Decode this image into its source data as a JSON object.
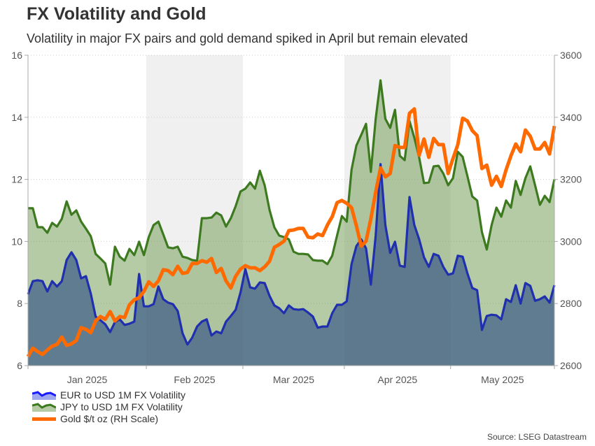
{
  "title": "FX Volatility and Gold",
  "subtitle": "Volatility in major FX pairs and gold demand spiked in April but remain elevated",
  "source": "Source: LSEG Datastream",
  "chart_data": {
    "type": "area+line",
    "title": "FX Volatility and Gold",
    "subtitle": "Volatility in major FX pairs and gold demand spiked in April but remain elevated",
    "left_axis": {
      "ylim": [
        6,
        16
      ],
      "ticks": [
        "6",
        "8",
        "10",
        "12",
        "14",
        "16"
      ]
    },
    "right_axis": {
      "ylim": [
        2600,
        3600
      ],
      "ticks": [
        "2600",
        "2800",
        "3000",
        "3200",
        "3400",
        "3600"
      ]
    },
    "x_tick_labels": [
      "Jan 2025",
      "Feb 2025",
      "Mar 2025",
      "Apr 2025",
      "May 2025"
    ],
    "shaded_months": [
      "Feb 2025",
      "Apr 2025"
    ],
    "grid": "horizontal dotted",
    "legend_position": "bottom-left",
    "x": [
      "2024-12-30",
      "2024-12-31",
      "2025-01-01",
      "2025-01-02",
      "2025-01-03",
      "2025-01-06",
      "2025-01-07",
      "2025-01-08",
      "2025-01-09",
      "2025-01-10",
      "2025-01-13",
      "2025-01-14",
      "2025-01-15",
      "2025-01-16",
      "2025-01-17",
      "2025-01-20",
      "2025-01-21",
      "2025-01-22",
      "2025-01-23",
      "2025-01-24",
      "2025-01-27",
      "2025-01-28",
      "2025-01-29",
      "2025-01-30",
      "2025-01-31",
      "2025-02-03",
      "2025-02-04",
      "2025-02-05",
      "2025-02-06",
      "2025-02-07",
      "2025-02-10",
      "2025-02-11",
      "2025-02-12",
      "2025-02-13",
      "2025-02-14",
      "2025-02-17",
      "2025-02-18",
      "2025-02-19",
      "2025-02-20",
      "2025-02-21",
      "2025-02-24",
      "2025-02-25",
      "2025-02-26",
      "2025-02-27",
      "2025-02-28",
      "2025-03-03",
      "2025-03-04",
      "2025-03-05",
      "2025-03-06",
      "2025-03-07",
      "2025-03-10",
      "2025-03-11",
      "2025-03-12",
      "2025-03-13",
      "2025-03-14",
      "2025-03-17",
      "2025-03-18",
      "2025-03-19",
      "2025-03-20",
      "2025-03-21",
      "2025-03-24",
      "2025-03-25",
      "2025-03-26",
      "2025-03-27",
      "2025-03-28",
      "2025-03-31",
      "2025-04-01",
      "2025-04-02",
      "2025-04-03",
      "2025-04-04",
      "2025-04-07",
      "2025-04-08",
      "2025-04-09",
      "2025-04-10",
      "2025-04-11",
      "2025-04-14",
      "2025-04-15",
      "2025-04-16",
      "2025-04-17",
      "2025-04-18",
      "2025-04-21",
      "2025-04-22",
      "2025-04-23",
      "2025-04-24",
      "2025-04-25",
      "2025-04-28",
      "2025-04-29",
      "2025-04-30",
      "2025-05-01",
      "2025-05-02",
      "2025-05-05",
      "2025-05-06",
      "2025-05-07",
      "2025-05-08",
      "2025-05-09",
      "2025-05-12",
      "2025-05-13",
      "2025-05-14",
      "2025-05-15",
      "2025-05-16",
      "2025-05-19",
      "2025-05-20",
      "2025-05-21",
      "2025-05-22",
      "2025-05-23",
      "2025-05-26",
      "2025-05-27",
      "2025-05-28",
      "2025-05-29",
      "2025-05-30"
    ],
    "series": [
      {
        "name": "JPY to USD 1M FX Volatility",
        "axis": "left",
        "style": "area",
        "line_color": "#3d7a1f",
        "fill_color": "#b4cba6",
        "values": [
          11.07,
          11.07,
          10.46,
          10.46,
          10.28,
          10.6,
          10.48,
          10.73,
          11.29,
          10.86,
          11.0,
          10.64,
          10.41,
          10.17,
          9.6,
          9.45,
          9.29,
          8.61,
          9.83,
          9.51,
          9.38,
          9.76,
          9.56,
          9.99,
          9.56,
          10.14,
          10.53,
          10.64,
          10.23,
          9.81,
          9.78,
          9.83,
          9.51,
          9.47,
          9.4,
          9.38,
          10.75,
          10.75,
          10.77,
          10.93,
          10.84,
          10.48,
          10.75,
          11.14,
          11.61,
          11.7,
          11.9,
          11.7,
          12.28,
          11.81,
          11.02,
          10.46,
          10.19,
          10.14,
          10.07,
          9.67,
          9.6,
          9.6,
          9.58,
          9.4,
          9.38,
          9.38,
          9.27,
          9.54,
          10.19,
          10.82,
          10.64,
          12.31,
          13.09,
          13.43,
          13.79,
          12.24,
          13.95,
          15.19,
          13.95,
          13.66,
          14.24,
          12.76,
          12.62,
          13.88,
          13.34,
          12.71,
          11.88,
          11.9,
          12.42,
          12.44,
          12.19,
          11.81,
          12.04,
          12.89,
          12.73,
          12.1,
          11.45,
          11.32,
          10.3,
          9.74,
          10.53,
          11.09,
          10.8,
          11.32,
          11.09,
          11.95,
          11.5,
          12.04,
          12.42,
          11.81,
          11.18,
          11.47,
          11.27,
          12.0
        ]
      },
      {
        "name": "EUR to USD 1M FX Volatility",
        "axis": "left",
        "style": "area",
        "line_color": "#1f2fae",
        "fill_color": "#7289a8",
        "values": [
          8.3,
          8.72,
          8.75,
          8.72,
          8.39,
          8.72,
          8.55,
          8.72,
          9.4,
          9.65,
          9.4,
          8.81,
          8.88,
          8.32,
          7.58,
          7.46,
          7.33,
          7.08,
          7.4,
          7.49,
          7.31,
          7.35,
          7.42,
          8.95,
          7.91,
          7.91,
          7.98,
          8.55,
          8.14,
          8.03,
          7.98,
          7.76,
          7.04,
          6.68,
          6.9,
          7.26,
          7.42,
          7.49,
          6.97,
          7.1,
          7.04,
          7.42,
          7.6,
          7.8,
          8.36,
          9.11,
          8.52,
          8.48,
          8.68,
          8.66,
          8.25,
          7.94,
          7.85,
          7.69,
          7.94,
          7.82,
          7.8,
          7.82,
          7.71,
          7.58,
          7.22,
          7.26,
          7.26,
          7.69,
          7.96,
          7.96,
          8.07,
          9.27,
          9.85,
          10.07,
          9.78,
          8.61,
          10.19,
          12.49,
          10.53,
          9.63,
          9.99,
          9.22,
          9.18,
          11.43,
          10.53,
          10.07,
          9.49,
          9.18,
          9.6,
          9.54,
          9.18,
          8.93,
          8.97,
          9.54,
          9.51,
          8.97,
          8.5,
          8.43,
          7.15,
          7.6,
          7.64,
          7.62,
          7.49,
          8.14,
          8.05,
          8.59,
          8.0,
          8.66,
          8.57,
          8.09,
          8.14,
          8.23,
          8.03,
          8.59
        ]
      },
      {
        "name": "Gold $/t oz (RH Scale)",
        "axis": "right",
        "style": "line",
        "line_color": "#ff6a00",
        "values": [
          2629,
          2656,
          2645,
          2636,
          2650,
          2663,
          2668,
          2692,
          2665,
          2670,
          2681,
          2722,
          2717,
          2706,
          2744,
          2758,
          2749,
          2774,
          2744,
          2758,
          2755,
          2796,
          2812,
          2819,
          2839,
          2870,
          2855,
          2873,
          2909,
          2906,
          2893,
          2920,
          2897,
          2900,
          2929,
          2929,
          2938,
          2933,
          2945,
          2900,
          2913,
          2873,
          2850,
          2888,
          2911,
          2922,
          2915,
          2915,
          2906,
          2918,
          2936,
          2981,
          2990,
          3001,
          3035,
          3037,
          3042,
          3042,
          3014,
          3012,
          3024,
          3019,
          3053,
          3080,
          3125,
          3132,
          3123,
          3109,
          3051,
          2985,
          3001,
          3073,
          3159,
          3237,
          3208,
          3219,
          3309,
          3303,
          3303,
          3413,
          3427,
          3278,
          3330,
          3271,
          3332,
          3312,
          3312,
          3219,
          3267,
          3312,
          3397,
          3388,
          3357,
          3341,
          3235,
          3246,
          3181,
          3210,
          3177,
          3231,
          3276,
          3314,
          3289,
          3359,
          3339,
          3298,
          3298,
          3319,
          3282,
          3372
        ]
      }
    ]
  },
  "legend": [
    {
      "label": "EUR to USD 1M FX Volatility",
      "icon": "area-swatch",
      "line_color": "#1a1aff",
      "fill_color": "#a0a8f0"
    },
    {
      "label": "JPY to USD 1M FX Volatility",
      "icon": "area-swatch",
      "line_color": "#3d7a1f",
      "fill_color": "#b4cba6"
    },
    {
      "label": "Gold $/t oz (RH Scale)",
      "icon": "line-swatch",
      "line_color": "#ff6a00"
    }
  ]
}
